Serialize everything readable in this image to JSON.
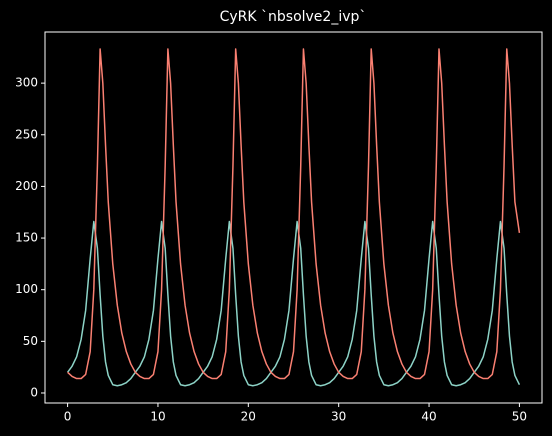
{
  "chart_data": {
    "type": "line",
    "title": "CyRK `nbsolve2_ivp`",
    "x": [
      0,
      0.5,
      1,
      1.5,
      2,
      2.5,
      2.9,
      3.3,
      3.6,
      3.9,
      4.2,
      4.5,
      5,
      5.5,
      6,
      6.5,
      7,
      7.5,
      8,
      8.5,
      9,
      9.5,
      10,
      10.4,
      10.8,
      11.1,
      11.4,
      11.7,
      12,
      12.5,
      13,
      13.5,
      14,
      14.5,
      15,
      15.5,
      16,
      16.5,
      17,
      17.5,
      17.9,
      18.3,
      18.6,
      18.9,
      19.2,
      19.5,
      20,
      20.5,
      21,
      21.5,
      22,
      22.5,
      23,
      23.5,
      24,
      24.5,
      25,
      25.4,
      25.8,
      26.1,
      26.4,
      26.7,
      27,
      27.5,
      28,
      28.5,
      29,
      29.5,
      30,
      30.5,
      31,
      31.5,
      32,
      32.5,
      32.9,
      33.3,
      33.6,
      33.9,
      34.2,
      34.5,
      35,
      35.5,
      36,
      36.5,
      37,
      37.5,
      38,
      38.5,
      39,
      39.5,
      40,
      40.4,
      40.8,
      41.1,
      41.4,
      41.7,
      42,
      42.5,
      43,
      43.5,
      44,
      44.5,
      45,
      45.5,
      46,
      46.5,
      47,
      47.5,
      47.9,
      48.3,
      48.6,
      48.9,
      49.2,
      49.5,
      50
    ],
    "series": [
      {
        "color": "#8dd3c7",
        "values": [
          20,
          26,
          35,
          52,
          80,
          130,
          166,
          140,
          95,
          55,
          30,
          17,
          8,
          7,
          8,
          10,
          14,
          20,
          26,
          35,
          52,
          80,
          130,
          166,
          140,
          95,
          55,
          30,
          17,
          8,
          7,
          8,
          10,
          14,
          20,
          26,
          35,
          52,
          80,
          130,
          166,
          140,
          95,
          55,
          30,
          17,
          8,
          7,
          8,
          10,
          14,
          20,
          26,
          35,
          52,
          80,
          130,
          166,
          140,
          95,
          55,
          30,
          17,
          8,
          7,
          8,
          10,
          14,
          20,
          26,
          35,
          52,
          80,
          130,
          166,
          140,
          95,
          55,
          30,
          17,
          8,
          7,
          8,
          10,
          14,
          20,
          26,
          35,
          52,
          80,
          130,
          166,
          140,
          95,
          55,
          30,
          17,
          8,
          7,
          8,
          10,
          14,
          20,
          26,
          35,
          52,
          80,
          130,
          166,
          140,
          95,
          55,
          30,
          17,
          8
        ]
      },
      {
        "color": "#fa8072",
        "values": [
          20,
          16,
          14,
          14,
          18,
          40,
          100,
          220,
          333,
          300,
          240,
          185,
          125,
          85,
          58,
          40,
          28,
          20,
          16,
          14,
          14,
          18,
          40,
          100,
          220,
          333,
          300,
          240,
          185,
          125,
          85,
          58,
          40,
          28,
          20,
          16,
          14,
          14,
          18,
          40,
          100,
          220,
          333,
          300,
          240,
          185,
          125,
          85,
          58,
          40,
          28,
          20,
          16,
          14,
          14,
          18,
          40,
          100,
          220,
          333,
          300,
          240,
          185,
          125,
          85,
          58,
          40,
          28,
          20,
          16,
          14,
          14,
          18,
          40,
          100,
          220,
          333,
          300,
          240,
          185,
          125,
          85,
          58,
          40,
          28,
          20,
          16,
          14,
          14,
          18,
          40,
          100,
          220,
          333,
          300,
          240,
          185,
          125,
          85,
          58,
          40,
          28,
          20,
          16,
          14,
          14,
          18,
          40,
          100,
          220,
          333,
          300,
          240,
          185,
          155
        ]
      }
    ],
    "xlim": [
      -2.5,
      52.5
    ],
    "ylim": [
      -9.7,
      349.5
    ],
    "xticks": [
      0,
      10,
      20,
      30,
      40,
      50
    ],
    "yticks": [
      0,
      50,
      100,
      150,
      200,
      250,
      300
    ]
  }
}
